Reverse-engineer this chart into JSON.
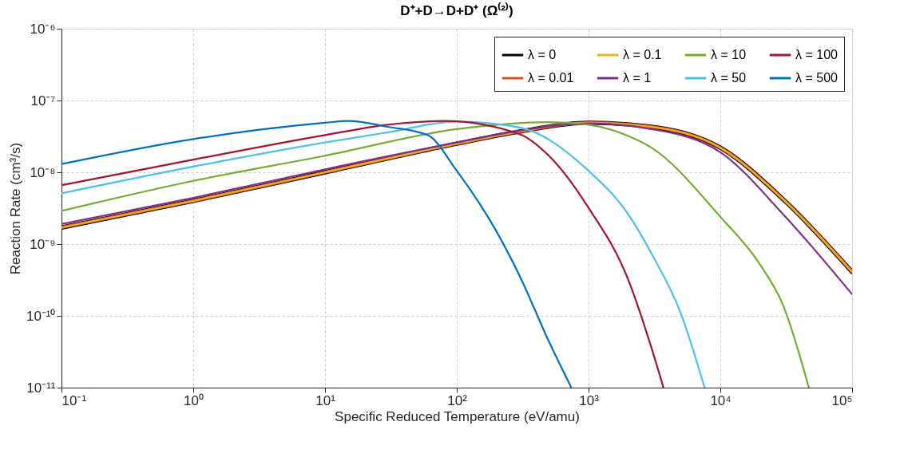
{
  "chart_data": {
    "type": "line",
    "title": "D⁺+D→D+D⁺ (Ω⁽²⁾)",
    "xlabel": "Specific Reduced Temperature (eV/amu)",
    "ylabel": "Reaction Rate (cm³/s)",
    "log": "xy",
    "grid": true,
    "legend": "top right",
    "line_style": "solid",
    "marker": "none",
    "xlim": [
      0.1,
      100000
    ],
    "ylim": [
      1e-11,
      1e-06
    ],
    "xticks": [
      {
        "value": 0.1,
        "label": "10⁻¹"
      },
      {
        "value": 1,
        "label": "10⁰"
      },
      {
        "value": 10,
        "label": "10¹"
      },
      {
        "value": 100,
        "label": "10²"
      },
      {
        "value": 1000,
        "label": "10³"
      },
      {
        "value": 10000,
        "label": "10⁴"
      },
      {
        "value": 100000,
        "label": "10⁵"
      }
    ],
    "yticks": [
      {
        "value": 1e-11,
        "label": "10⁻¹¹"
      },
      {
        "value": 1e-10,
        "label": "10⁻¹⁰"
      },
      {
        "value": 1e-09,
        "label": "10⁻⁹"
      },
      {
        "value": 1e-08,
        "label": "10⁻⁸"
      },
      {
        "value": 1e-07,
        "label": "10⁻⁷"
      },
      {
        "value": 1e-06,
        "label": "10⁻⁶"
      }
    ],
    "series": [
      {
        "name": "λ = 0",
        "color": "#000000",
        "x": [
          0.1,
          1,
          10,
          100,
          300,
          1000,
          3000,
          10000,
          30000,
          100000
        ],
        "values": [
          1.7e-09,
          4e-09,
          1e-08,
          2.5e-08,
          3.7e-08,
          4.9e-08,
          4.3e-08,
          2.2e-08,
          4.2e-09,
          4.1e-10
        ]
      },
      {
        "name": "λ = 0.01",
        "color": "#d95319",
        "x": [
          0.1,
          1,
          10,
          100,
          300,
          1000,
          3000,
          10000,
          30000,
          100000
        ],
        "values": [
          1.7e-09,
          4e-09,
          1e-08,
          2.5e-08,
          3.7e-08,
          4.9e-08,
          4.3e-08,
          2.2e-08,
          4.2e-09,
          4.1e-10
        ]
      },
      {
        "name": "λ = 0.1",
        "color": "#edb120",
        "x": [
          0.1,
          1,
          10,
          100,
          300,
          1000,
          3000,
          10000,
          30000,
          100000
        ],
        "values": [
          1.7e-09,
          4e-09,
          1e-08,
          2.5e-08,
          3.7e-08,
          4.9e-08,
          4.3e-08,
          2.2e-08,
          4.2e-09,
          4.1e-10
        ]
      },
      {
        "name": "λ = 1",
        "color": "#7e2f8e",
        "x": [
          0.1,
          1,
          10,
          100,
          300,
          1000,
          3000,
          10000,
          30000,
          100000
        ],
        "values": [
          1.9e-09,
          4.4e-09,
          1.1e-08,
          2.6e-08,
          3.8e-08,
          4.8e-08,
          4e-08,
          1.9e-08,
          2.6e-09,
          2e-10
        ]
      },
      {
        "name": "λ = 10",
        "color": "#77ac30",
        "x": [
          0.1,
          1,
          10,
          100,
          500,
          1000,
          2000,
          3000,
          10000,
          20000,
          30000,
          47000
        ],
        "values": [
          2.9e-09,
          7.6e-09,
          1.7e-08,
          4e-08,
          5e-08,
          4.6e-08,
          3.2e-08,
          2.2e-08,
          2.4e-09,
          5.2e-10,
          1.4e-10,
          1e-11
        ]
      },
      {
        "name": "λ = 50",
        "color": "#4dbeee",
        "x": [
          0.1,
          1,
          10,
          30,
          100,
          300,
          1000,
          2000,
          3000,
          5000,
          7600
        ],
        "values": [
          5.1e-09,
          1.2e-08,
          2.6e-08,
          3.6e-08,
          5.1e-08,
          4.2e-08,
          1.05e-08,
          2.6e-09,
          7.4e-10,
          1.1e-10,
          1e-11
        ]
      },
      {
        "name": "λ = 100",
        "color": "#a2142f",
        "x": [
          0.1,
          1,
          10,
          30,
          80,
          300,
          500,
          1000,
          2000,
          3000,
          3700
        ],
        "values": [
          6.6e-09,
          1.5e-08,
          3.3e-08,
          4.6e-08,
          5.2e-08,
          3.4e-08,
          1.7e-08,
          3.2e-09,
          3.2e-10,
          3.6e-11,
          1e-11
        ]
      },
      {
        "name": "λ = 500",
        "color": "#0072bd",
        "x": [
          0.1,
          1,
          10,
          15,
          30,
          60,
          100,
          200,
          300,
          500,
          740
        ],
        "values": [
          1.3e-08,
          2.9e-08,
          4.9e-08,
          5.2e-08,
          4.3e-08,
          3.3e-08,
          1.05e-08,
          1.5e-09,
          3.6e-10,
          4.4e-11,
          1e-11
        ]
      }
    ]
  }
}
